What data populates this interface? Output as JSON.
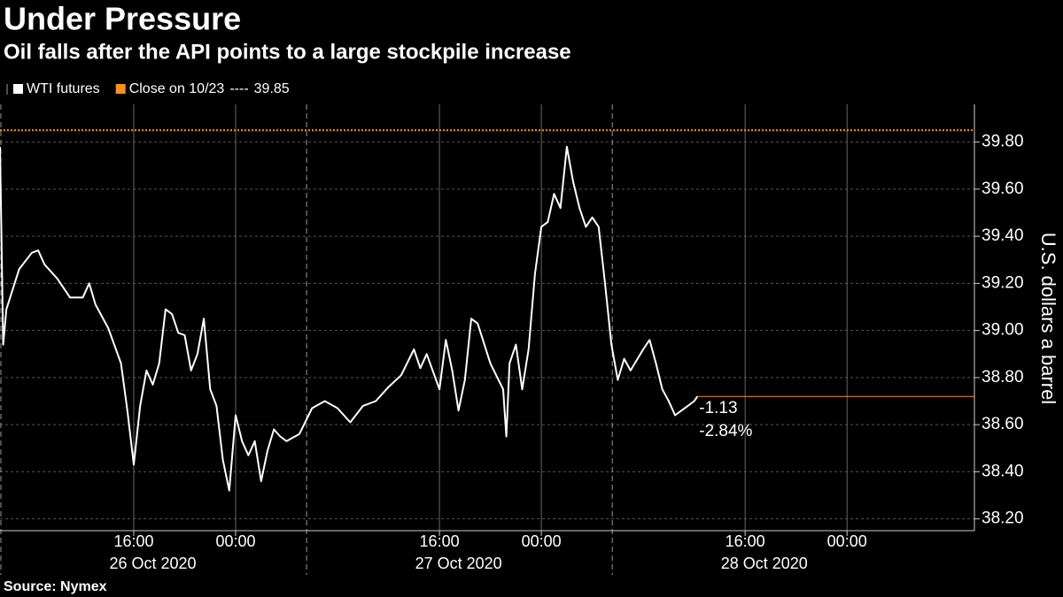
{
  "chart_data": {
    "type": "line",
    "title": "Under Pressure",
    "subtitle": "Oil falls after the API points to a large stockpile increase",
    "y_axis_label": "U.S. dollars a barrel",
    "source": "Source: Nymex",
    "series": [
      {
        "name": "WTI futures",
        "color": "#ffffff",
        "x": [
          "2020-10-26T05:30",
          "2020-10-26T05:45",
          "2020-10-26T06:00",
          "2020-10-26T07:00",
          "2020-10-26T08:00",
          "2020-10-26T08:30",
          "2020-10-26T09:00",
          "2020-10-26T10:00",
          "2020-10-26T11:00",
          "2020-10-26T12:00",
          "2020-10-26T12:30",
          "2020-10-26T13:00",
          "2020-10-26T14:00",
          "2020-10-26T15:00",
          "2020-10-26T15:30",
          "2020-10-26T16:00",
          "2020-10-26T16:30",
          "2020-10-26T17:00",
          "2020-10-26T17:30",
          "2020-10-26T18:00",
          "2020-10-26T18:30",
          "2020-10-26T19:00",
          "2020-10-26T19:30",
          "2020-10-26T20:00",
          "2020-10-26T20:30",
          "2020-10-26T21:00",
          "2020-10-26T21:30",
          "2020-10-26T22:00",
          "2020-10-26T22:30",
          "2020-10-26T23:00",
          "2020-10-26T23:30",
          "2020-10-27T00:00",
          "2020-10-27T00:30",
          "2020-10-27T01:00",
          "2020-10-27T01:30",
          "2020-10-27T02:00",
          "2020-10-27T02:30",
          "2020-10-27T03:00",
          "2020-10-27T03:30",
          "2020-10-27T04:00",
          "2020-10-27T05:00",
          "2020-10-27T06:00",
          "2020-10-27T07:00",
          "2020-10-27T08:00",
          "2020-10-27T09:00",
          "2020-10-27T10:00",
          "2020-10-27T11:00",
          "2020-10-27T12:00",
          "2020-10-27T13:00",
          "2020-10-27T14:00",
          "2020-10-27T14:30",
          "2020-10-27T15:00",
          "2020-10-27T16:00",
          "2020-10-27T16:30",
          "2020-10-27T17:00",
          "2020-10-27T17:30",
          "2020-10-27T18:00",
          "2020-10-27T18:30",
          "2020-10-27T19:00",
          "2020-10-27T20:00",
          "2020-10-27T21:00",
          "2020-10-27T21:15",
          "2020-10-27T21:30",
          "2020-10-27T22:00",
          "2020-10-27T22:30",
          "2020-10-27T23:00",
          "2020-10-27T23:30",
          "2020-10-28T00:00",
          "2020-10-28T00:30",
          "2020-10-28T01:00",
          "2020-10-28T01:30",
          "2020-10-28T02:00",
          "2020-10-28T02:30",
          "2020-10-28T03:00",
          "2020-10-28T03:30",
          "2020-10-28T04:00",
          "2020-10-28T04:30",
          "2020-10-28T05:00",
          "2020-10-28T05:30",
          "2020-10-28T06:00",
          "2020-10-28T06:30",
          "2020-10-28T07:00",
          "2020-10-28T08:00",
          "2020-10-28T08:30",
          "2020-10-28T09:00",
          "2020-10-28T09:30",
          "2020-10-28T10:00",
          "2020-10-28T10:30",
          "2020-10-28T11:00",
          "2020-10-28T11:30",
          "2020-10-28T12:00",
          "2020-10-28T12:15"
        ],
        "values": [
          39.78,
          38.94,
          39.09,
          39.26,
          39.33,
          39.34,
          39.28,
          39.22,
          39.14,
          39.14,
          39.2,
          39.11,
          39.01,
          38.86,
          38.66,
          38.43,
          38.68,
          38.83,
          38.77,
          38.86,
          39.09,
          39.07,
          38.99,
          38.98,
          38.83,
          38.9,
          39.05,
          38.75,
          38.68,
          38.45,
          38.32,
          38.64,
          38.53,
          38.47,
          38.53,
          38.36,
          38.49,
          38.58,
          38.55,
          38.53,
          38.56,
          38.67,
          38.7,
          38.67,
          38.61,
          38.68,
          38.7,
          38.76,
          38.81,
          38.92,
          38.84,
          38.9,
          38.75,
          38.96,
          38.83,
          38.66,
          38.79,
          39.05,
          39.03,
          38.86,
          38.75,
          38.55,
          38.86,
          38.94,
          38.75,
          38.92,
          39.24,
          39.44,
          39.46,
          39.58,
          39.52,
          39.78,
          39.63,
          39.52,
          39.44,
          39.48,
          39.44,
          39.2,
          38.94,
          38.79,
          38.88,
          38.83,
          38.92,
          38.96,
          38.86,
          38.75,
          38.7,
          38.64,
          38.66,
          38.68,
          38.7,
          38.72
        ]
      }
    ],
    "reference_line": {
      "name": "Close on 10/23",
      "separator": "----",
      "value": 39.85,
      "color": "#f7931e"
    },
    "annotations": [
      "-1.13",
      "-2.84%"
    ],
    "annotation_color": "#f7931e",
    "xlim": [
      "2020-10-26T05:30",
      "2020-10-29T10:00"
    ],
    "xticks": [
      {
        "value": "2020-10-26T16:00",
        "label": "16:00"
      },
      {
        "value": "2020-10-27T00:00",
        "label": "00:00"
      },
      {
        "value": "2020-10-27T16:00",
        "label": "16:00"
      },
      {
        "value": "2020-10-28T00:00",
        "label": "00:00"
      },
      {
        "value": "2020-10-28T16:00",
        "label": "16:00"
      },
      {
        "value": "2020-10-29T00:00",
        "label": "00:00"
      }
    ],
    "days": [
      {
        "value": "2020-10-26T05:30",
        "label": "26 Oct 2020"
      },
      {
        "value": "2020-10-27T05:30",
        "label": "27 Oct 2020"
      },
      {
        "value": "2020-10-28T05:30",
        "label": "28 Oct 2020"
      }
    ],
    "ylim": [
      38.15,
      39.96
    ],
    "yticks": [
      {
        "value": 38.2,
        "label": "38.20"
      },
      {
        "value": 38.4,
        "label": "38.40"
      },
      {
        "value": 38.6,
        "label": "38.60"
      },
      {
        "value": 38.8,
        "label": "38.80"
      },
      {
        "value": 39,
        "label": "39.00"
      },
      {
        "value": 39.2,
        "label": "39.20"
      },
      {
        "value": 39.4,
        "label": "39.40"
      },
      {
        "value": 39.6,
        "label": "39.60"
      },
      {
        "value": 39.8,
        "label": "39.80"
      }
    ],
    "grid": true,
    "y_axis_side": "right"
  }
}
